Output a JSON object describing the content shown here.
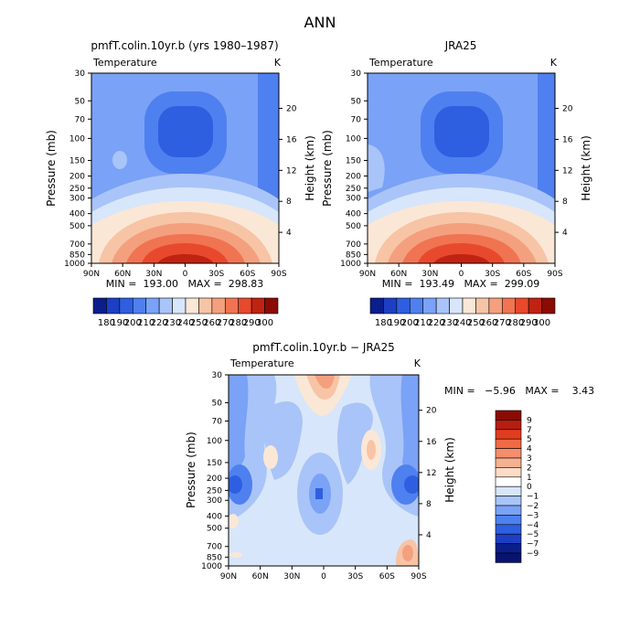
{
  "figure_title": "ANN",
  "chart_data": [
    {
      "type": "heatmap",
      "title": "pmfT.colin.10yr.b (yrs 1980–1987)",
      "subtitle_left": "Temperature",
      "subtitle_right": "K",
      "xlabel": "",
      "ylabel": "Pressure (mb)",
      "y2label": "Height (km)",
      "x_ticks": [
        "90N",
        "60N",
        "30N",
        "0",
        "30S",
        "60S",
        "90S"
      ],
      "y_ticks": [
        "30",
        "50",
        "70",
        "100",
        "150",
        "200",
        "250",
        "300",
        "400",
        "500",
        "700",
        "850",
        "1000"
      ],
      "y2_ticks": [
        "20",
        "16",
        "12",
        "8",
        "4"
      ],
      "stats": "MIN =  193.00   MAX =  298.83",
      "colorbar_labels": [
        "180",
        "190",
        "200",
        "210",
        "220",
        "230",
        "240",
        "250",
        "260",
        "270",
        "280",
        "290",
        "300"
      ],
      "ylim": [
        1000,
        30
      ],
      "min": 193.0,
      "max": 298.83
    },
    {
      "type": "heatmap",
      "title": "JRA25",
      "subtitle_left": "Temperature",
      "subtitle_right": "K",
      "xlabel": "",
      "ylabel": "Pressure (mb)",
      "y2label": "Height (km)",
      "x_ticks": [
        "90N",
        "60N",
        "30N",
        "0",
        "30S",
        "60S",
        "90S"
      ],
      "y_ticks": [
        "30",
        "50",
        "70",
        "100",
        "150",
        "200",
        "250",
        "300",
        "400",
        "500",
        "700",
        "850",
        "1000"
      ],
      "y2_ticks": [
        "20",
        "16",
        "12",
        "8",
        "4"
      ],
      "stats": "MIN =  193.49   MAX =  299.09",
      "colorbar_labels": [
        "180",
        "190",
        "200",
        "210",
        "220",
        "230",
        "240",
        "250",
        "260",
        "270",
        "280",
        "290",
        "300"
      ],
      "ylim": [
        1000,
        30
      ],
      "min": 193.49,
      "max": 299.09
    },
    {
      "type": "heatmap",
      "title": "pmfT.colin.10yr.b − JRA25",
      "subtitle_left": "Temperature",
      "subtitle_right": "K",
      "xlabel": "",
      "ylabel": "Pressure (mb)",
      "y2label": "Height (km)",
      "x_ticks": [
        "90N",
        "60N",
        "30N",
        "0",
        "30S",
        "60S",
        "90S"
      ],
      "y_ticks": [
        "30",
        "50",
        "70",
        "100",
        "150",
        "200",
        "250",
        "300",
        "400",
        "500",
        "700",
        "850",
        "1000"
      ],
      "y2_ticks": [
        "20",
        "16",
        "12",
        "8",
        "4"
      ],
      "stats": "MIN =   −5.96   MAX =    3.43",
      "colorbar_labels": [
        "9",
        "7",
        "5",
        "4",
        "3",
        "2",
        "1",
        "0",
        "−1",
        "−2",
        "−3",
        "−4",
        "−5",
        "−7",
        "−9"
      ],
      "ylim": [
        1000,
        30
      ],
      "min": -5.96,
      "max": 3.43
    }
  ],
  "colors": {
    "abs_scale": [
      "#0a1e8c",
      "#1d3fc4",
      "#2e5fe0",
      "#4f80f0",
      "#7aa2f6",
      "#a9c4f8",
      "#d7e6fa",
      "#fbe7d6",
      "#f7c4a6",
      "#f4a07e",
      "#f07452",
      "#e8492c",
      "#c02312",
      "#8a0b04"
    ],
    "diff_scale": [
      "#8a0b04",
      "#b81d10",
      "#e03d1e",
      "#f06a45",
      "#f48e6c",
      "#f6b092",
      "#fcdcc6",
      "#ffffff",
      "#d7e6fa",
      "#a9c4f8",
      "#7aa2f6",
      "#4f80f0",
      "#2e5fe0",
      "#1d3fc4",
      "#0a1e8c",
      "#061370"
    ]
  }
}
